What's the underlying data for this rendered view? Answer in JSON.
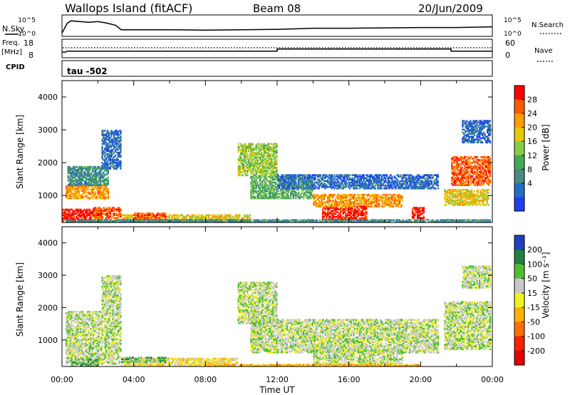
{
  "header": {
    "station": "Wallops Island (fitACF)",
    "beam": "Beam 08",
    "date": "20/Jun/2009"
  },
  "side_labels": {
    "nsky": "N.Sky",
    "freq": "Freq.",
    "freq_unit": "[MHz]",
    "cpid": "CPID",
    "nsearch": "N.Search",
    "nave": "Nave",
    "tau": "tau  -502"
  },
  "nsky_ticks": [
    "10^5",
    "10^0"
  ],
  "nsearch_ticks": [
    "10^5",
    "10^0"
  ],
  "freq_ticks": [
    "18",
    "8"
  ],
  "nave_ticks": [
    "60",
    "0"
  ],
  "chart_data": [
    {
      "type": "line",
      "panel": "N.Sky / N.Search",
      "series": [
        {
          "name": "N.Sky",
          "x_hours": [
            0.0,
            0.3,
            0.5,
            1.0,
            1.5,
            2.0,
            2.5,
            3.0,
            3.3,
            4,
            6,
            8,
            10,
            12,
            14,
            16,
            18,
            20,
            22,
            24
          ],
          "log10_values": [
            0.5,
            3.2,
            3.8,
            3.6,
            3.4,
            3.6,
            3.2,
            2.6,
            1.4,
            1.4,
            1.4,
            1.3,
            1.4,
            1.5,
            1.8,
            1.8,
            1.9,
            2.0,
            2.0,
            2.2
          ]
        }
      ],
      "ylim_log10": [
        0,
        5
      ]
    },
    {
      "type": "line",
      "panel": "Freq. / Nave",
      "series": [
        {
          "name": "Freq.",
          "x_hours": [
            0,
            0.2,
            0.3,
            12.0,
            12.0,
            21.7,
            21.7,
            24
          ],
          "values": [
            10.7,
            10.7,
            11.3,
            11.3,
            12.7,
            12.7,
            11.3,
            11.3
          ]
        },
        {
          "name": "Nave",
          "x_hours": [
            0,
            24
          ],
          "values": [
            33,
            33
          ]
        }
      ],
      "freq_ylim": [
        8,
        18
      ],
      "nave_ylim": [
        0,
        60
      ]
    },
    {
      "type": "heatmap",
      "panel": "Power",
      "ylabel": "Slant Range [km]",
      "xlabel": "Time UT",
      "xlim_hours": [
        0,
        24
      ],
      "ylim_km": [
        180,
        4500
      ],
      "yticks": [
        "1000",
        "2000",
        "3000",
        "4000"
      ],
      "xticks": [
        "00:00",
        "04:00",
        "08:00",
        "12:00",
        "16:00",
        "20:00",
        "00:00"
      ],
      "colorbar_label": "Power [dB]",
      "colorbar_ticks": [
        "28",
        "24",
        "20",
        "16",
        "12",
        "8",
        "4"
      ],
      "colorbar_colors": [
        "#ff0000",
        "#ff5a00",
        "#ff9a00",
        "#e6c800",
        "#88cc44",
        "#44aa55",
        "#4a8a80",
        "#2070c8",
        "#2040f0"
      ],
      "regions": [
        {
          "t0": 0.0,
          "t1": 2.2,
          "r0": 200,
          "r1": 600,
          "level": 0
        },
        {
          "t0": 0.2,
          "t1": 2.6,
          "r0": 900,
          "r1": 1350,
          "level": 2
        },
        {
          "t0": 1.7,
          "t1": 3.3,
          "r0": 300,
          "r1": 650,
          "level": 1
        },
        {
          "t0": 3.3,
          "t1": 10.5,
          "r0": 200,
          "r1": 430,
          "level": 3
        },
        {
          "t0": 4.0,
          "t1": 5.8,
          "r0": 250,
          "r1": 480,
          "level": 1
        },
        {
          "t0": 0.3,
          "t1": 2.6,
          "r0": 1300,
          "r1": 1900,
          "level": 6
        },
        {
          "t0": 2.2,
          "t1": 3.3,
          "r0": 1800,
          "r1": 3000,
          "level": 7
        },
        {
          "t0": 9.8,
          "t1": 12.0,
          "r0": 1600,
          "r1": 2600,
          "level": 4
        },
        {
          "t0": 10.5,
          "t1": 14.0,
          "r0": 900,
          "r1": 1600,
          "level": 5
        },
        {
          "t0": 12.0,
          "t1": 21.0,
          "r0": 1200,
          "r1": 1650,
          "level": 7
        },
        {
          "t0": 14.5,
          "t1": 17.0,
          "r0": 250,
          "r1": 700,
          "level": 0
        },
        {
          "t0": 14.0,
          "t1": 19.0,
          "r0": 650,
          "r1": 1050,
          "level": 2
        },
        {
          "t0": 19.5,
          "t1": 20.2,
          "r0": 300,
          "r1": 650,
          "level": 0
        },
        {
          "t0": 21.3,
          "t1": 23.8,
          "r0": 700,
          "r1": 1200,
          "level": 3
        },
        {
          "t0": 21.7,
          "t1": 23.9,
          "r0": 1300,
          "r1": 2200,
          "level": 1
        },
        {
          "t0": 22.3,
          "t1": 23.9,
          "r0": 2600,
          "r1": 3300,
          "level": 7
        },
        {
          "t0": 0.2,
          "t1": 23.9,
          "r0": 180,
          "r1": 280,
          "level": 6
        }
      ]
    },
    {
      "type": "heatmap",
      "panel": "Velocity",
      "ylabel": "Slant Range [km]",
      "xlabel": "Time UT",
      "xlim_hours": [
        0,
        24
      ],
      "ylim_km": [
        180,
        4500
      ],
      "yticks": [
        "1000",
        "2000",
        "3000",
        "4000"
      ],
      "xticks": [
        "00:00",
        "04:00",
        "08:00",
        "12:00",
        "16:00",
        "20:00",
        "00:00"
      ],
      "colorbar_label": "Velocity [m s⁻¹]",
      "colorbar_ticks": [
        "200",
        "100",
        "50",
        "15",
        "-15",
        "-50",
        "-100",
        "-200"
      ],
      "colorbar_colors": [
        "#2040c0",
        "#208040",
        "#50c030",
        "#c8c8c8",
        "#f0f020",
        "#ffb000",
        "#ff7000",
        "#ff2000",
        "#e00000"
      ],
      "regions": [
        {
          "t0": 0.2,
          "t1": 3.3,
          "r0": 250,
          "r1": 1900,
          "level": 3
        },
        {
          "t0": 2.2,
          "t1": 3.3,
          "r0": 1900,
          "r1": 3000,
          "level": 3
        },
        {
          "t0": 3.3,
          "t1": 9.8,
          "r0": 200,
          "r1": 450,
          "level": 4
        },
        {
          "t0": 0.5,
          "t1": 2.0,
          "r0": 200,
          "r1": 420,
          "level": 2
        },
        {
          "t0": 3.3,
          "t1": 5.8,
          "r0": 300,
          "r1": 480,
          "level": 2
        },
        {
          "t0": 9.8,
          "t1": 12.0,
          "r0": 1500,
          "r1": 2800,
          "level": 3
        },
        {
          "t0": 10.5,
          "t1": 21.0,
          "r0": 600,
          "r1": 1650,
          "level": 3
        },
        {
          "t0": 14.0,
          "t1": 19.0,
          "r0": 250,
          "r1": 700,
          "level": 3
        },
        {
          "t0": 8.0,
          "t1": 20.0,
          "r0": 180,
          "r1": 260,
          "level": 5
        },
        {
          "t0": 21.3,
          "t1": 23.9,
          "r0": 700,
          "r1": 2200,
          "level": 3
        },
        {
          "t0": 22.3,
          "t1": 23.9,
          "r0": 2600,
          "r1": 3300,
          "level": 3
        }
      ]
    }
  ],
  "colors": {
    "axis": "#000000",
    "white": "#ffffff"
  }
}
